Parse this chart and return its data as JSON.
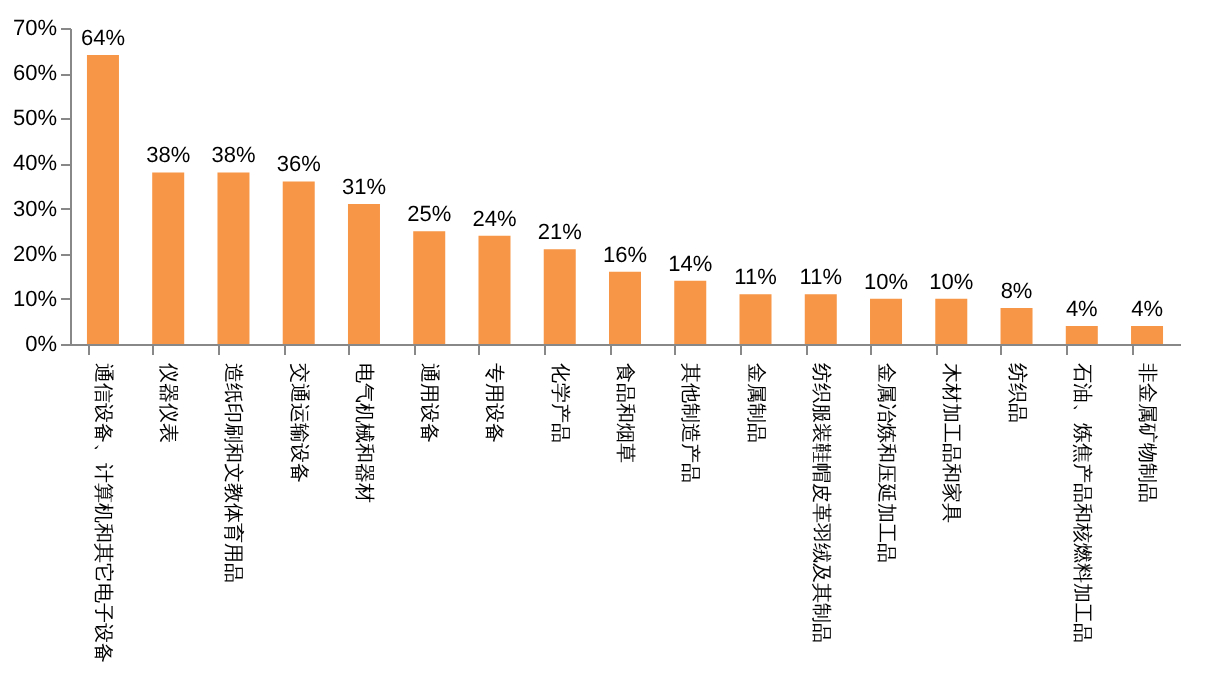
{
  "chart_data": {
    "type": "bar",
    "categories": [
      "通信设备、计算机和其它电子设备",
      "仪器仪表",
      "造纸印刷和文教体育用品",
      "交通运输设备",
      "电气机械和器材",
      "通用设备",
      "专用设备",
      "化学产品",
      "食品和烟草",
      "其他制造产品",
      "金属制品",
      "纺织服装鞋帽皮革羽绒及其制品",
      "金属冶炼和压延加工品",
      "木材加工品和家具",
      "纺织品",
      "石油、炼焦产品和核燃料加工品",
      "非金属矿物制品"
    ],
    "values": [
      64,
      38,
      38,
      36,
      31,
      25,
      24,
      21,
      16,
      14,
      11,
      11,
      10,
      10,
      8,
      4,
      4
    ],
    "value_labels": [
      "64%",
      "38%",
      "38%",
      "36%",
      "31%",
      "25%",
      "24%",
      "21%",
      "16%",
      "14%",
      "11%",
      "11%",
      "10%",
      "10%",
      "8%",
      "4%",
      "4%"
    ],
    "color": "#f79646",
    "ylim": [
      0,
      70
    ],
    "yticks": [
      {
        "value": 0,
        "label": "0%"
      },
      {
        "value": 10,
        "label": "10%"
      },
      {
        "value": 20,
        "label": "20%"
      },
      {
        "value": 30,
        "label": "30%"
      },
      {
        "value": 40,
        "label": "40%"
      },
      {
        "value": 50,
        "label": "50%"
      },
      {
        "value": 60,
        "label": "60%"
      },
      {
        "value": 70,
        "label": "70%"
      }
    ],
    "grid": false
  }
}
